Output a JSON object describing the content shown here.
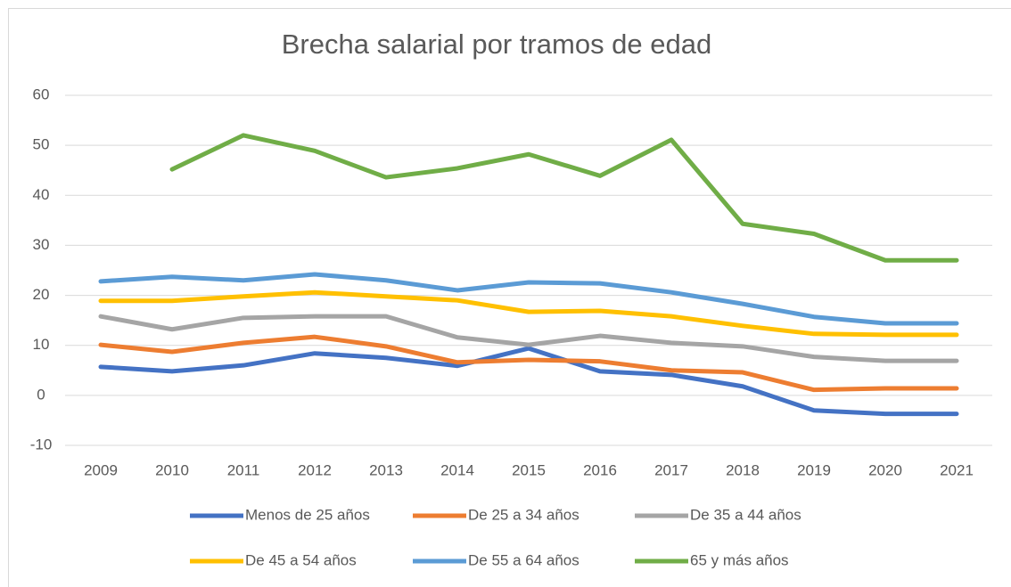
{
  "chart_data": {
    "type": "line",
    "title": "Brecha salarial por tramos de edad",
    "categories": [
      "2009",
      "2010",
      "2011",
      "2012",
      "2013",
      "2014",
      "2015",
      "2016",
      "2017",
      "2018",
      "2019",
      "2020",
      "2021"
    ],
    "ylim": [
      -10,
      60
    ],
    "yticks": [
      -10,
      0,
      10,
      20,
      30,
      40,
      50,
      60
    ],
    "grid": true,
    "legend": "bottom",
    "series": [
      {
        "name": "Menos de 25 años",
        "color": "#4472c4",
        "values": [
          5.7,
          4.8,
          6.0,
          8.4,
          7.5,
          5.9,
          9.4,
          4.8,
          4.1,
          1.8,
          -3.0,
          -3.7,
          -3.7
        ]
      },
      {
        "name": "De 25 a 34 años",
        "color": "#ed7d31",
        "values": [
          10.1,
          8.7,
          10.5,
          11.7,
          9.8,
          6.6,
          7.1,
          6.8,
          5.0,
          4.6,
          1.1,
          1.4,
          1.4
        ]
      },
      {
        "name": "De 35 a 44 años",
        "color": "#a5a5a5",
        "values": [
          15.8,
          13.2,
          15.5,
          15.8,
          15.8,
          11.6,
          10.1,
          11.9,
          10.5,
          9.8,
          7.7,
          6.9,
          6.9
        ]
      },
      {
        "name": "De 45 a 54 años",
        "color": "#ffc000",
        "values": [
          18.9,
          18.9,
          19.8,
          20.6,
          19.8,
          19.0,
          16.7,
          16.9,
          15.8,
          13.9,
          12.3,
          12.1,
          12.1
        ]
      },
      {
        "name": "De 55 a 64 años",
        "color": "#5b9bd5",
        "values": [
          22.8,
          23.7,
          23.0,
          24.2,
          23.0,
          21.0,
          22.6,
          22.4,
          20.6,
          18.3,
          15.7,
          14.4,
          14.4
        ]
      },
      {
        "name": "65 y más años",
        "color": "#70ad47",
        "values": [
          null,
          45.2,
          52.0,
          48.9,
          43.6,
          45.4,
          48.2,
          43.9,
          51.1,
          34.3,
          32.3,
          27.0,
          27.0
        ]
      }
    ]
  }
}
